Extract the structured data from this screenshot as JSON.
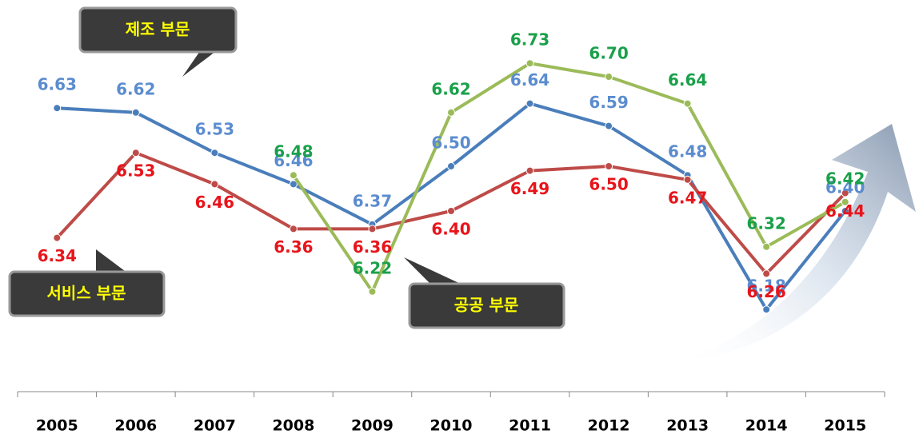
{
  "chart_data": {
    "type": "line",
    "categories": [
      "2005",
      "2006",
      "2007",
      "2008",
      "2009",
      "2010",
      "2011",
      "2012",
      "2013",
      "2014",
      "2015"
    ],
    "series": [
      {
        "name": "제조 부문",
        "color": "#4a7ebb",
        "label_color": "#5b8ccf",
        "values": [
          6.63,
          6.62,
          6.53,
          6.46,
          6.37,
          6.5,
          6.64,
          6.59,
          6.48,
          6.18,
          6.4
        ]
      },
      {
        "name": "서비스 부문",
        "color": "#be4b48",
        "label_color": "#e8141b",
        "values": [
          6.34,
          6.53,
          6.46,
          6.36,
          6.36,
          6.4,
          6.49,
          6.5,
          6.47,
          6.26,
          6.44
        ]
      },
      {
        "name": "공공 부문",
        "color": "#9bbb59",
        "label_color": "#1aa04a",
        "values": [
          null,
          null,
          null,
          6.48,
          6.22,
          6.62,
          6.73,
          6.7,
          6.64,
          6.32,
          6.42
        ]
      }
    ],
    "value_labels": [
      [
        "6.63",
        "6.62",
        "6.53",
        "6.46",
        "6.37",
        "6.50",
        "6.64",
        "6.59",
        "6.48",
        "6.18",
        "6.40"
      ],
      [
        "6.34",
        "6.53",
        "6.46",
        "6.36",
        "6.36",
        "6.40",
        "6.49",
        "6.50",
        "6.47",
        "6.26",
        "6.44"
      ],
      [
        null,
        null,
        null,
        "6.48",
        "6.22",
        "6.62",
        "6.73",
        "6.70",
        "6.64",
        "6.32",
        "6.42"
      ]
    ],
    "ylim": [
      6.1,
      6.8
    ]
  }
}
